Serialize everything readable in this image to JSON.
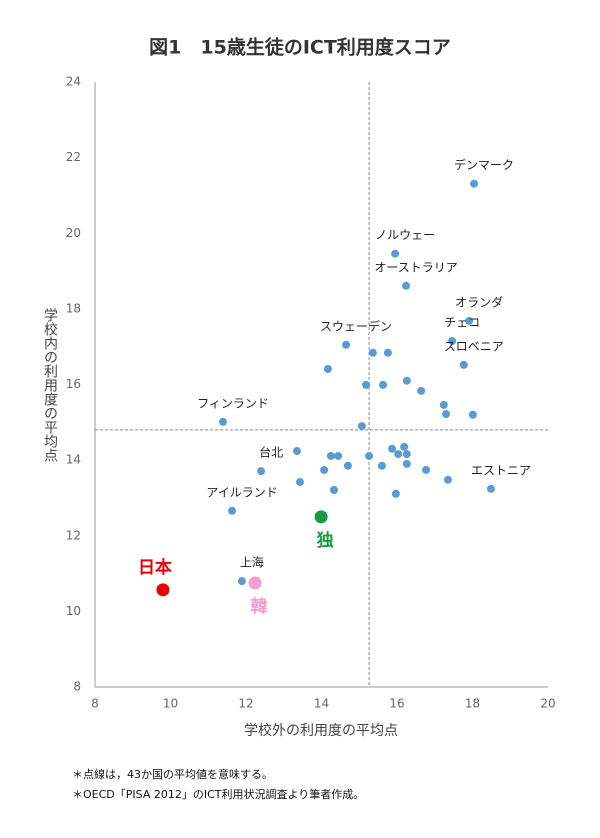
{
  "chart_data": {
    "type": "scatter",
    "title": "図1　15歳生徒のICT利用度スコア",
    "x_label": "学校外の利用度の平均点",
    "y_label": "学校内の利用度の平均点",
    "xlim": [
      8,
      20
    ],
    "ylim": [
      8,
      24
    ],
    "xticks": [
      8,
      10,
      12,
      14,
      16,
      18,
      20
    ],
    "yticks": [
      8,
      10,
      12,
      14,
      16,
      18,
      20,
      22,
      24
    ],
    "color": "#5b9bd5",
    "mean_x": 15.26,
    "mean_y": 14.8,
    "points": [
      {
        "label": "デンマーク",
        "x": 18.04,
        "y": 21.31
      },
      {
        "label": "ノルウェー",
        "x": 15.95,
        "y": 19.46
      },
      {
        "label": "オーストラリア",
        "x": 16.24,
        "y": 18.61
      },
      {
        "label": "オランダ",
        "x": 17.91,
        "y": 17.68
      },
      {
        "label": "チェコ",
        "x": 17.46,
        "y": 17.15
      },
      {
        "label": "スロベニア",
        "x": 17.77,
        "y": 16.52
      },
      {
        "label": "スウェーデン",
        "x": 14.65,
        "y": 17.05
      },
      {
        "label": "フィンランド",
        "x": 11.39,
        "y": 15.01
      },
      {
        "label": "台北",
        "x": 12.4,
        "y": 13.71
      },
      {
        "label": "アイルランド",
        "x": 11.63,
        "y": 12.66
      },
      {
        "label": "上海",
        "x": 11.89,
        "y": 10.8
      },
      {
        "label": "エストニア",
        "x": 18.49,
        "y": 13.24
      },
      {
        "label": null,
        "x": 14.17,
        "y": 16.41
      },
      {
        "label": null,
        "x": 15.36,
        "y": 16.84
      },
      {
        "label": null,
        "x": 15.76,
        "y": 16.84
      },
      {
        "label": null,
        "x": 15.18,
        "y": 15.99
      },
      {
        "label": null,
        "x": 15.63,
        "y": 15.99
      },
      {
        "label": null,
        "x": 16.26,
        "y": 16.1
      },
      {
        "label": null,
        "x": 16.64,
        "y": 15.83
      },
      {
        "label": null,
        "x": 17.24,
        "y": 15.46
      },
      {
        "label": null,
        "x": 17.3,
        "y": 15.22
      },
      {
        "label": null,
        "x": 18.01,
        "y": 15.2
      },
      {
        "label": null,
        "x": 15.07,
        "y": 14.9
      },
      {
        "label": null,
        "x": 13.35,
        "y": 14.24
      },
      {
        "label": null,
        "x": 14.25,
        "y": 14.11
      },
      {
        "label": null,
        "x": 14.44,
        "y": 14.11
      },
      {
        "label": null,
        "x": 15.26,
        "y": 14.11
      },
      {
        "label": null,
        "x": 15.87,
        "y": 14.3
      },
      {
        "label": null,
        "x": 16.03,
        "y": 14.16
      },
      {
        "label": null,
        "x": 16.19,
        "y": 14.35
      },
      {
        "label": null,
        "x": 16.26,
        "y": 14.16
      },
      {
        "label": null,
        "x": 16.26,
        "y": 13.9
      },
      {
        "label": null,
        "x": 15.6,
        "y": 13.85
      },
      {
        "label": null,
        "x": 14.7,
        "y": 13.85
      },
      {
        "label": null,
        "x": 14.07,
        "y": 13.74
      },
      {
        "label": null,
        "x": 16.77,
        "y": 13.74
      },
      {
        "label": null,
        "x": 13.43,
        "y": 13.42
      },
      {
        "label": null,
        "x": 14.33,
        "y": 13.21
      },
      {
        "label": null,
        "x": 17.35,
        "y": 13.48
      },
      {
        "label": null,
        "x": 15.97,
        "y": 13.11
      }
    ],
    "highlights": [
      {
        "label": "日本",
        "x": 9.8,
        "y": 10.57,
        "color": "#e8000b"
      },
      {
        "label": "韓",
        "x": 12.24,
        "y": 10.75,
        "color": "#f29ed0"
      },
      {
        "label": "独",
        "x": 13.99,
        "y": 12.5,
        "color": "#1a9a45"
      }
    ],
    "notes": [
      "＊点線は，43か国の平均値を意味する。",
      "＊OECD「PISA 2012」のICT利用状況調査より筆者作成。"
    ]
  }
}
